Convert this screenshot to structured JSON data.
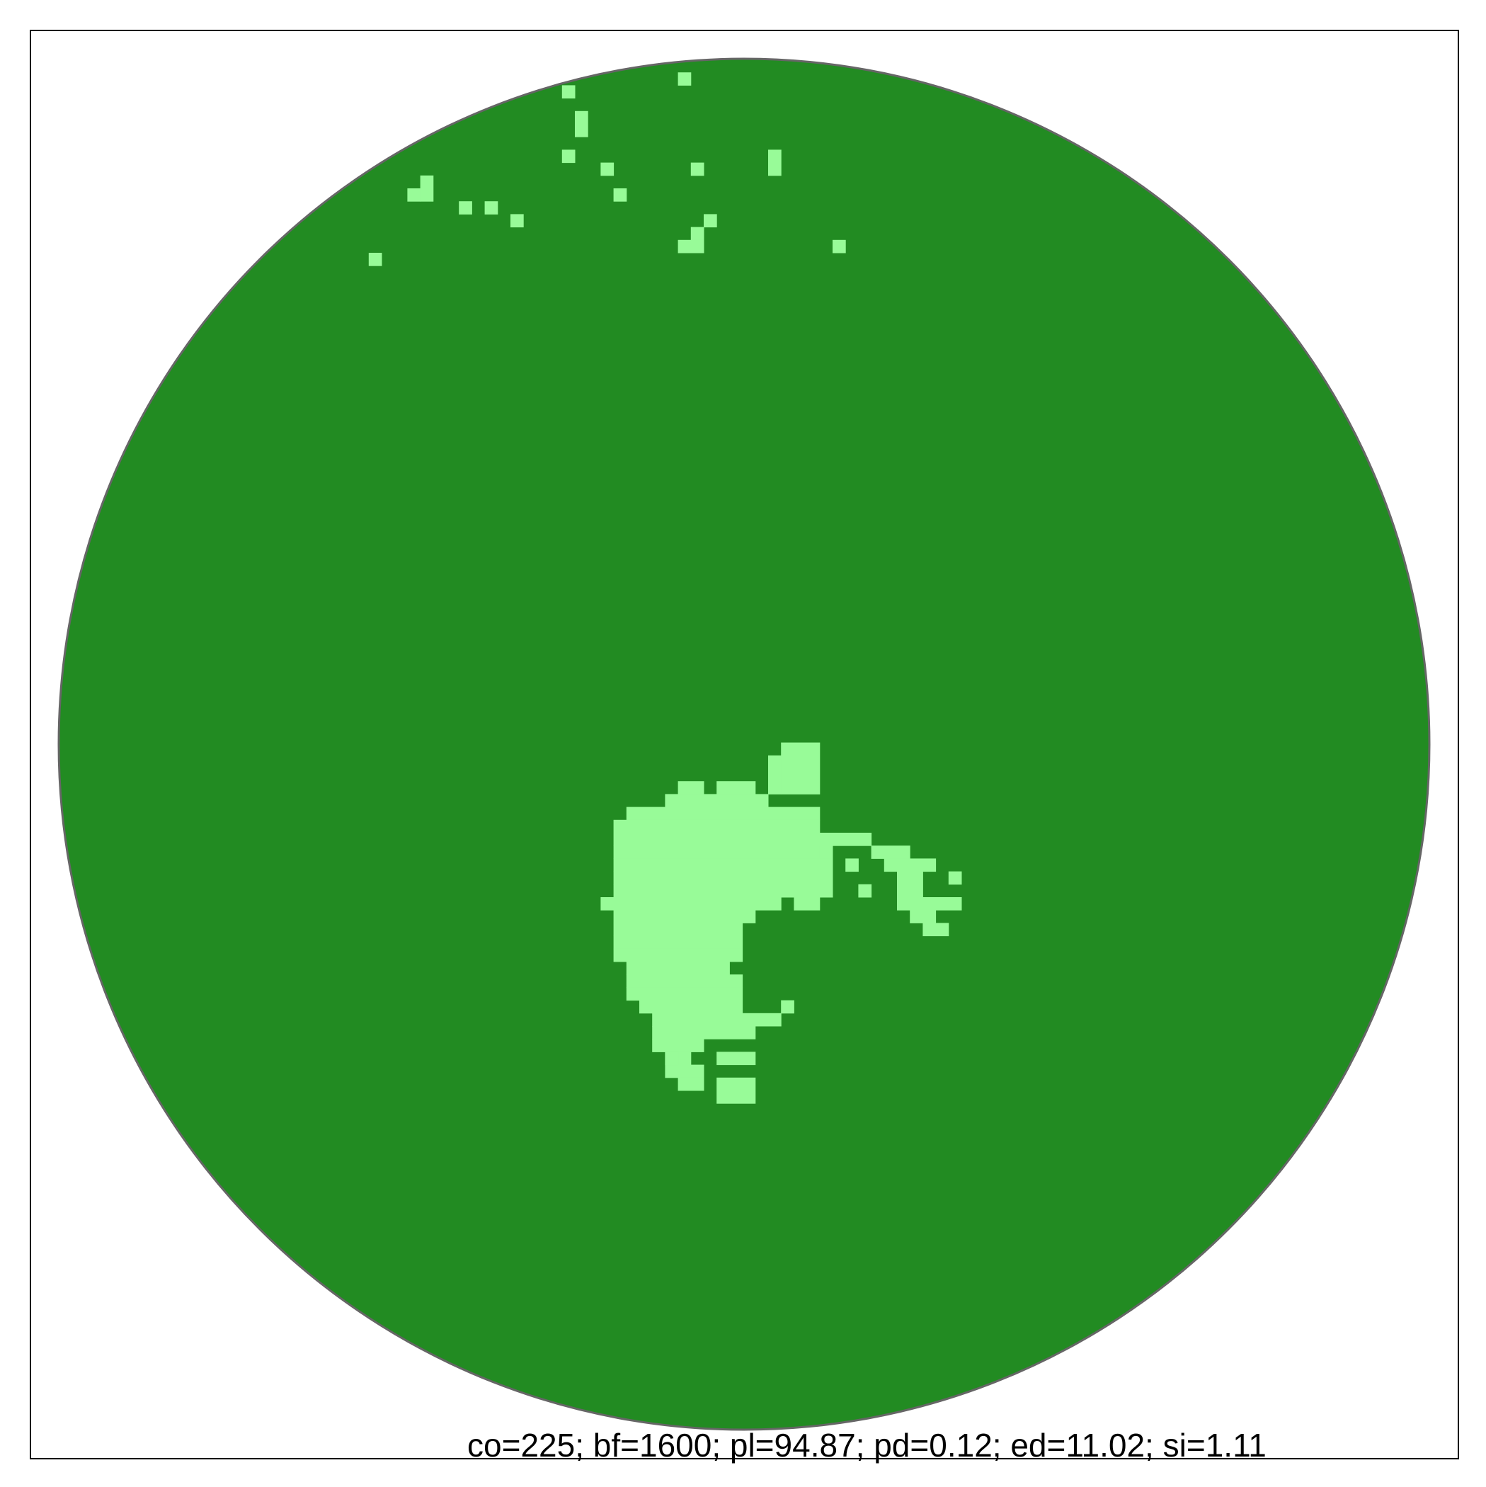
{
  "chart_data": {
    "type": "heatmap",
    "description_keys": "categorical raster clipped to a circle",
    "colors": {
      "forest": "#228B22",
      "gap": "#98FB98",
      "circle_outline": "#666666",
      "frame": "#000000"
    },
    "classes": [
      "forest",
      "gap"
    ],
    "stats_text": "co=225; bf=1600; pl=94.87; pd=0.12; ed=11.02; si=1.11",
    "stats": {
      "co": 225,
      "bf": 1600,
      "pl": 94.87,
      "pd": 0.12,
      "ed": 11.02,
      "si": 1.11
    }
  }
}
